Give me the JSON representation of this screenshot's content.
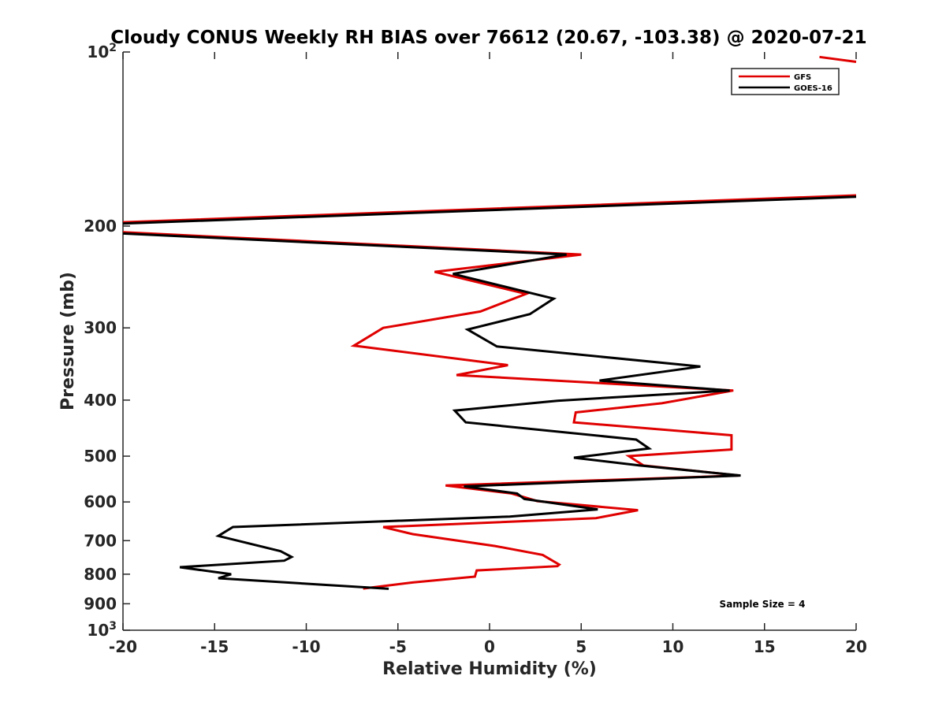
{
  "chart_data": {
    "type": "line",
    "title": "Cloudy CONUS Weekly RH BIAS over 76612 (20.67, -103.38) @ 2020-07-21",
    "xlabel": "Relative Humidity (%)",
    "ylabel": "Pressure (mb)",
    "xlim": [
      -20,
      20
    ],
    "ylim": [
      100,
      1000
    ],
    "yscale": "log",
    "y_reversed": true,
    "x_ticks": [
      "-20",
      "-15",
      "-10",
      "-5",
      "0",
      "5",
      "10",
      "15",
      "20"
    ],
    "y_ticks": [
      {
        "value": 100,
        "base": "10",
        "exp": "2"
      },
      {
        "value": 200,
        "label": "200"
      },
      {
        "value": 300,
        "label": "300"
      },
      {
        "value": 400,
        "label": "400"
      },
      {
        "value": 500,
        "label": "500"
      },
      {
        "value": 600,
        "label": "600"
      },
      {
        "value": 700,
        "label": "700"
      },
      {
        "value": 800,
        "label": "800"
      },
      {
        "value": 900,
        "label": "900"
      },
      {
        "value": 1000,
        "base": "10",
        "exp": "3"
      }
    ],
    "legend": {
      "position": "top-right",
      "entries": [
        "GFS",
        "GOES-16"
      ]
    },
    "annotation": "Sample Size = 4",
    "series": [
      {
        "name": "GFS",
        "color": "#e00000",
        "points": [
          [
            18,
            102
          ],
          [
            20,
            104
          ],
          null,
          [
            20,
            177
          ],
          [
            -20,
            197
          ],
          null,
          [
            -20,
            205
          ],
          [
            5,
            224
          ],
          [
            -3,
            240
          ],
          [
            2,
            262
          ],
          [
            -0.5,
            281
          ],
          [
            -5.8,
            300
          ],
          [
            -7.4,
            322
          ],
          [
            1,
            348
          ],
          [
            -1.8,
            362
          ],
          [
            13.3,
            385
          ],
          [
            9.4,
            405
          ],
          [
            4.7,
            420
          ],
          [
            4.6,
            437
          ],
          [
            13.2,
            460
          ],
          [
            13.2,
            487
          ],
          [
            7.6,
            500
          ],
          [
            8.4,
            519
          ],
          [
            13.6,
            540
          ],
          [
            -2.4,
            562
          ],
          [
            1.2,
            580
          ],
          [
            2.6,
            598
          ],
          [
            8.1,
            620
          ],
          [
            5.8,
            640
          ],
          [
            -5.8,
            663
          ],
          [
            -4.2,
            682
          ],
          [
            0.3,
            715
          ],
          [
            2.9,
            741
          ],
          [
            3.8,
            770
          ],
          [
            3.7,
            775
          ],
          [
            -0.7,
            788
          ],
          [
            -0.8,
            808
          ],
          [
            -4.2,
            827
          ],
          [
            -6.9,
            847
          ]
        ]
      },
      {
        "name": "GOES-16",
        "color": "#000000",
        "points": [
          [
            20,
            178
          ],
          [
            -20,
            198
          ],
          null,
          [
            -20,
            206
          ],
          [
            4.2,
            224
          ],
          [
            -2,
            242
          ],
          [
            3.5,
            267
          ],
          [
            2.2,
            284
          ],
          [
            -1.2,
            302
          ],
          [
            0.4,
            323
          ],
          [
            11.5,
            350
          ],
          [
            6,
            370
          ],
          [
            13.1,
            385
          ],
          [
            3.7,
            401
          ],
          [
            -1.9,
            417
          ],
          [
            -1.3,
            437
          ],
          [
            8,
            468
          ],
          [
            8.7,
            485
          ],
          [
            4.6,
            503
          ],
          [
            8.2,
            519
          ],
          [
            13.7,
            540
          ],
          [
            -1.4,
            564
          ],
          [
            1.5,
            580
          ],
          [
            1.9,
            593
          ],
          [
            5.9,
            618
          ],
          [
            1.1,
            636
          ],
          [
            -14,
            663
          ],
          [
            -14.8,
            687
          ],
          [
            -11.4,
            730
          ],
          [
            -10.8,
            747
          ],
          [
            -11.2,
            758
          ],
          [
            -16.9,
            778
          ],
          [
            -14.1,
            800
          ],
          [
            -14.8,
            813
          ],
          [
            -5.5,
            848
          ]
        ]
      }
    ]
  }
}
